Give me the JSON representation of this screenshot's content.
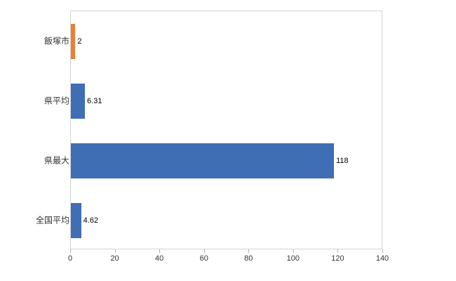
{
  "chart_data": {
    "type": "bar",
    "orientation": "horizontal",
    "title": "",
    "xlabel": "",
    "ylabel": "",
    "categories": [
      "飯塚市",
      "県平均",
      "県最大",
      "全国平均"
    ],
    "values": [
      2,
      6.31,
      118,
      4.62
    ],
    "value_labels": [
      "2",
      "6.31",
      "118",
      "4.62"
    ],
    "bar_colors": [
      "#ed7d31",
      "#3f6eb4",
      "#3f6eb4",
      "#3f6eb4"
    ],
    "xlim": [
      0,
      140
    ],
    "x_ticks": [
      0,
      20,
      40,
      60,
      80,
      100,
      120,
      140
    ],
    "grid": false,
    "legend_position": "none"
  },
  "colors": {
    "accent_orange": "#ed7d31",
    "accent_blue": "#3f6eb4",
    "axis_border": "#d3d3d3",
    "tick": "#b0b0b0",
    "text": "#333333"
  }
}
